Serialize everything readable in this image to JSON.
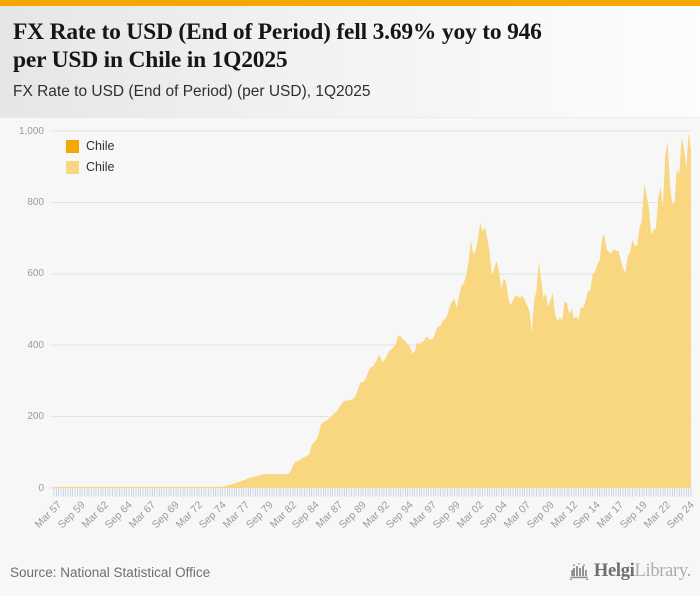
{
  "header": {
    "title": "FX Rate to USD (End of Period) fell 3.69% yoy to 946 per USD in Chile in 1Q2025",
    "title_lines": [
      "FX Rate to USD (End of Period) fell 3.69% yoy to 946",
      "per USD in Chile in 1Q2025"
    ],
    "subtitle": "FX Rate to USD (End of Period) (per USD), 1Q2025"
  },
  "legend": {
    "items": [
      {
        "label": "Chile",
        "color": "#F5A800"
      },
      {
        "label": "Chile",
        "color": "#F9D780"
      }
    ]
  },
  "chart_data": {
    "type": "area",
    "title": "FX Rate to USD (End of Period) (per USD), 1Q2025",
    "series_name": "Chile",
    "unit": "per USD",
    "frequency": "quarterly",
    "start_period": "1957Q1",
    "end_period": "2025Q1",
    "ylim": [
      0,
      1000
    ],
    "yticks": [
      0,
      200,
      400,
      600,
      800,
      1000
    ],
    "ytick_labels": [
      "0",
      "200",
      "400",
      "600",
      "800",
      "1,000"
    ],
    "x_tick_step_quarters": 10,
    "x_tick_labels": [
      "Mar 57",
      "Sep 59",
      "Mar 62",
      "Sep 64",
      "Mar 67",
      "Sep 69",
      "Mar 72",
      "Sep 74",
      "Mar 77",
      "Sep 79",
      "Mar 82",
      "Sep 84",
      "Mar 87",
      "Sep 89",
      "Mar 92",
      "Sep 94",
      "Mar 97",
      "Sep 99",
      "Mar 02",
      "Sep 04",
      "Mar 07",
      "Sep 09",
      "Mar 12",
      "Sep 14",
      "Mar 17",
      "Sep 19",
      "Mar 22",
      "Sep 24"
    ],
    "grid": "horizontal",
    "legend_position": "top-left",
    "area_color": "#F9D780",
    "tick_color": "#c9d3e6",
    "grid_color": "#e3e3e3",
    "values": [
      0.001,
      0.001,
      0.001,
      0.001,
      0.001,
      0.001,
      0.001,
      0.001,
      0.001,
      0.001,
      0.001,
      0.001,
      0.001,
      0.001,
      0.001,
      0.001,
      0.001,
      0.001,
      0.001,
      0.001,
      0.001,
      0.001,
      0.001,
      0.002,
      0.002,
      0.002,
      0.002,
      0.002,
      0.002,
      0.003,
      0.003,
      0.003,
      0.003,
      0.003,
      0.004,
      0.004,
      0.004,
      0.004,
      0.004,
      0.004,
      0.004,
      0.005,
      0.005,
      0.005,
      0.006,
      0.006,
      0.006,
      0.007,
      0.007,
      0.008,
      0.008,
      0.009,
      0.01,
      0.01,
      0.011,
      0.012,
      0.013,
      0.014,
      0.015,
      0.016,
      0.017,
      0.019,
      0.022,
      0.025,
      0.03,
      0.04,
      0.06,
      0.11,
      0.3,
      0.6,
      1.1,
      1.9,
      3,
      4.5,
      6.1,
      8.5,
      10.5,
      12.5,
      14.5,
      17.4,
      19.5,
      21.5,
      24.5,
      28,
      29.5,
      31,
      32.5,
      34,
      35.5,
      37,
      39,
      39,
      39,
      39,
      39,
      39,
      39,
      39,
      39,
      39,
      39,
      46,
      63,
      73.4,
      75,
      79,
      83,
      87.1,
      90,
      94,
      120,
      128.2,
      135,
      150,
      178,
      183.9,
      188,
      192,
      198,
      204.7,
      210,
      218,
      228,
      238.1,
      243,
      246,
      245,
      247.2,
      251,
      262,
      280,
      297.4,
      296,
      305,
      322,
      337.1,
      340,
      349,
      360,
      374.5,
      352,
      358,
      370,
      382.3,
      388,
      394,
      404,
      428.5,
      424,
      417,
      412,
      402.9,
      395,
      377,
      382,
      407.1,
      404,
      408,
      413,
      425,
      417,
      416,
      419,
      439.8,
      452,
      455,
      467,
      473.8,
      484,
      508,
      523,
      530.1,
      504,
      540,
      566,
      573.6,
      596,
      634,
      695,
      654.8,
      664,
      697,
      744,
      718.6,
      731,
      699,
      661,
      593.8,
      616,
      636,
      606,
      557.4,
      586,
      579,
      530,
      512.5,
      526,
      539,
      537,
      532.4,
      539,
      527,
      511,
      496.9,
      437,
      526,
      552,
      636.5,
      583,
      532,
      546,
      507.1,
      526,
      547,
      484,
      468,
      478,
      468,
      522,
      519.2,
      488,
      501,
      474,
      480,
      472,
      507,
      504,
      524.6,
      551,
      553,
      599,
      606.8,
      625,
      639,
      698,
      710.2,
      669,
      661,
      658,
      669.5,
      664,
      664,
      639,
      614.8,
      603,
      651,
      660,
      695.7,
      679,
      679,
      728,
      748.7,
      852,
      821,
      788,
      711,
      722,
      728,
      811,
      844.7,
      786,
      932,
      969,
      851,
      794,
      802,
      894,
      877.1,
      982,
      949,
      897,
      996,
      946
    ]
  },
  "footer": {
    "source": "Source: National Statistical Office",
    "logo_bold": "Helgi",
    "logo_light": "Library."
  },
  "colors": {
    "accent": "#F5A800",
    "area": "#F9D780",
    "grid": "#e3e3e3",
    "axis_tick": "#c9d3e6",
    "axis_label": "#9b9b9b",
    "background": "#f7f7f7"
  }
}
